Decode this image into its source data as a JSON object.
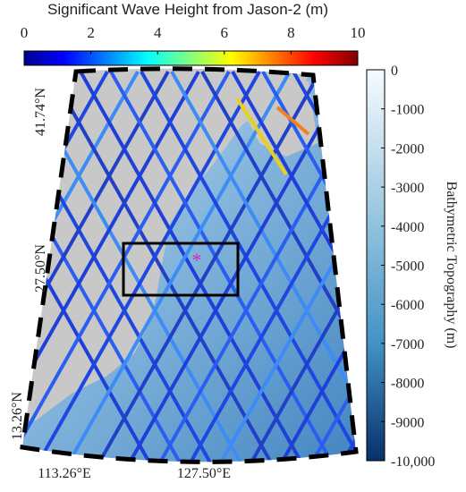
{
  "title": "Significant Wave Height from Jason-2 (m)",
  "wave_colorbar": {
    "lim": [
      0,
      10
    ],
    "ticks": [
      0,
      2,
      4,
      6,
      8,
      10
    ]
  },
  "depth_colorbar": {
    "label": "Bathymetric Topography (m)",
    "lim": [
      -10000,
      0
    ],
    "ticks": [
      0,
      -1000,
      -2000,
      -3000,
      -4000,
      -5000,
      -6000,
      -7000,
      -8000,
      -9000,
      {
        "value": -10000,
        "label": "-10,000"
      }
    ]
  },
  "map": {
    "lat_labels": [
      "41.74°N",
      "27.50°N",
      "13.26°N"
    ],
    "lon_labels": [
      "113.26°E",
      "127.50°E"
    ]
  }
}
